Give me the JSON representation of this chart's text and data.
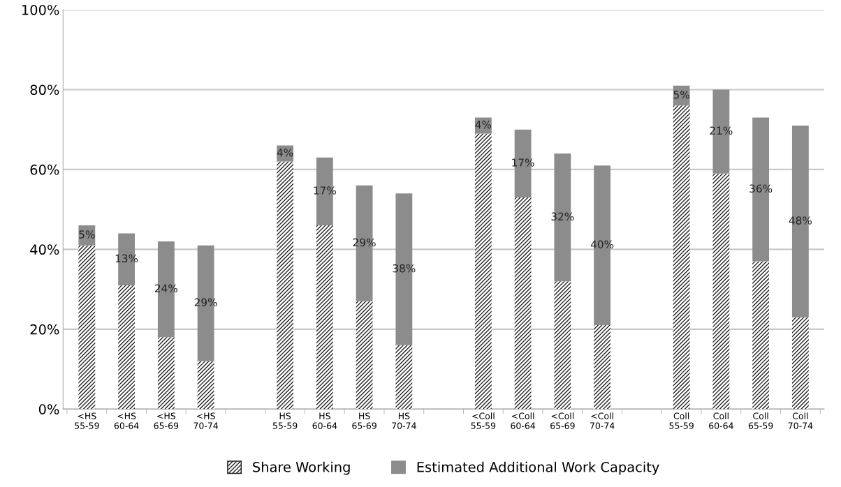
{
  "chart_data": {
    "type": "bar",
    "stacked": true,
    "categories": [
      "<HS\n55-59",
      "<HS\n60-64",
      "<HS\n65-69",
      "<HS\n70-74",
      null,
      "HS\n55-59",
      "HS\n60-64",
      "HS\n65-69",
      "HS\n70-74",
      null,
      "<Coll\n55-59",
      "<Coll\n60-64",
      "<Coll\n65-69",
      "<Coll\n70-74",
      null,
      "Coll\n55-59",
      "Coll\n60-64",
      "Coll\n65-59",
      "Coll\n70-74"
    ],
    "series": [
      {
        "name": "Share Working",
        "color": "#ffffff",
        "values": [
          41,
          31,
          18,
          12,
          null,
          62,
          46,
          27,
          16,
          null,
          69,
          53,
          32,
          21,
          null,
          76,
          59,
          37,
          23
        ]
      },
      {
        "name": "Estimated Additional Work Capacity",
        "color": "#8c8c8c",
        "values": [
          5,
          13,
          24,
          29,
          null,
          4,
          17,
          29,
          38,
          null,
          4,
          17,
          32,
          40,
          null,
          5,
          21,
          36,
          48
        ],
        "value_labels": [
          "5%",
          "13%",
          "24%",
          "29%",
          null,
          "4%",
          "17%",
          "29%",
          "38%",
          null,
          "4%",
          "17%",
          "32%",
          "40%",
          null,
          "5%",
          "21%",
          "36%",
          "48%"
        ]
      }
    ],
    "ylim": [
      0,
      100
    ],
    "yticks": [
      {
        "value": 0,
        "label": "0%"
      },
      {
        "value": 20,
        "label": "20%"
      },
      {
        "value": 40,
        "label": "40%"
      },
      {
        "value": 60,
        "label": "60%"
      },
      {
        "value": 80,
        "label": "80%"
      },
      {
        "value": 100,
        "label": "100%"
      }
    ],
    "grid": "y",
    "legend": "bottom"
  }
}
